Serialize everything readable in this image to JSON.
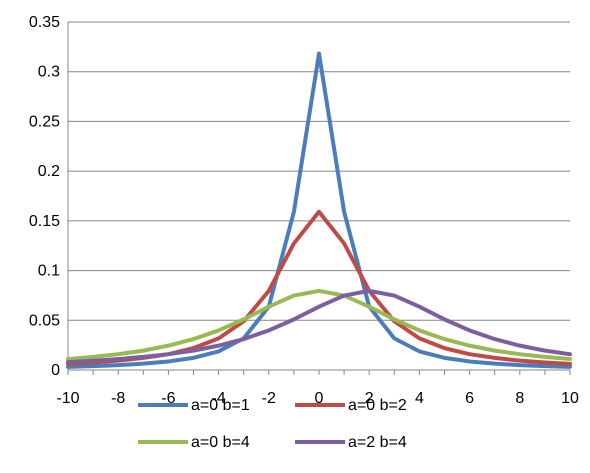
{
  "chart_data": {
    "type": "line",
    "title": "",
    "xlabel": "",
    "ylabel": "",
    "x": [
      -10,
      -9,
      -8,
      -7,
      -6,
      -5,
      -4,
      -3,
      -2,
      -1,
      0,
      1,
      2,
      3,
      4,
      5,
      6,
      7,
      8,
      9,
      10
    ],
    "xticks": [
      -10,
      -8,
      -6,
      -4,
      -2,
      0,
      2,
      4,
      6,
      8,
      10
    ],
    "yticks": [
      0,
      0.05,
      0.1,
      0.15,
      0.2,
      0.25,
      0.3,
      0.35
    ],
    "ytick_labels": [
      "0",
      "0.05",
      "0.1",
      "0.15",
      "0.2",
      "0.25",
      "0.3",
      "0.35"
    ],
    "xlim": [
      -10,
      10
    ],
    "ylim": [
      0,
      0.35
    ],
    "grid": "horizontal",
    "legend_position": "bottom",
    "series": [
      {
        "name": "a=0 b=1",
        "color": "#4A7EBB",
        "values": [
          0.0032,
          0.0039,
          0.0049,
          0.0064,
          0.0086,
          0.0122,
          0.0187,
          0.0318,
          0.0637,
          0.1592,
          0.3183,
          0.1592,
          0.0637,
          0.0318,
          0.0187,
          0.0122,
          0.0086,
          0.0064,
          0.0049,
          0.0039,
          0.0032
        ]
      },
      {
        "name": "a=0 b=2",
        "color": "#BE4B48",
        "values": [
          0.0061,
          0.0075,
          0.0094,
          0.0122,
          0.0159,
          0.022,
          0.0318,
          0.049,
          0.0796,
          0.1273,
          0.1592,
          0.1273,
          0.0796,
          0.049,
          0.0318,
          0.022,
          0.0159,
          0.0122,
          0.0094,
          0.0075,
          0.0061
        ]
      },
      {
        "name": "a=0 b=4",
        "color": "#98B954",
        "values": [
          0.011,
          0.0132,
          0.0159,
          0.0195,
          0.0245,
          0.0311,
          0.0398,
          0.0509,
          0.0637,
          0.0749,
          0.0796,
          0.0749,
          0.0637,
          0.0509,
          0.0398,
          0.0311,
          0.0245,
          0.0195,
          0.0159,
          0.0132,
          0.011
        ]
      },
      {
        "name": "a=2 b=4",
        "color": "#7D5FA0",
        "values": [
          0.0079,
          0.0093,
          0.011,
          0.0132,
          0.0159,
          0.0195,
          0.0245,
          0.0311,
          0.0398,
          0.0509,
          0.0637,
          0.0749,
          0.0796,
          0.0749,
          0.0637,
          0.0509,
          0.0398,
          0.0311,
          0.0245,
          0.0195,
          0.0159
        ]
      }
    ]
  }
}
